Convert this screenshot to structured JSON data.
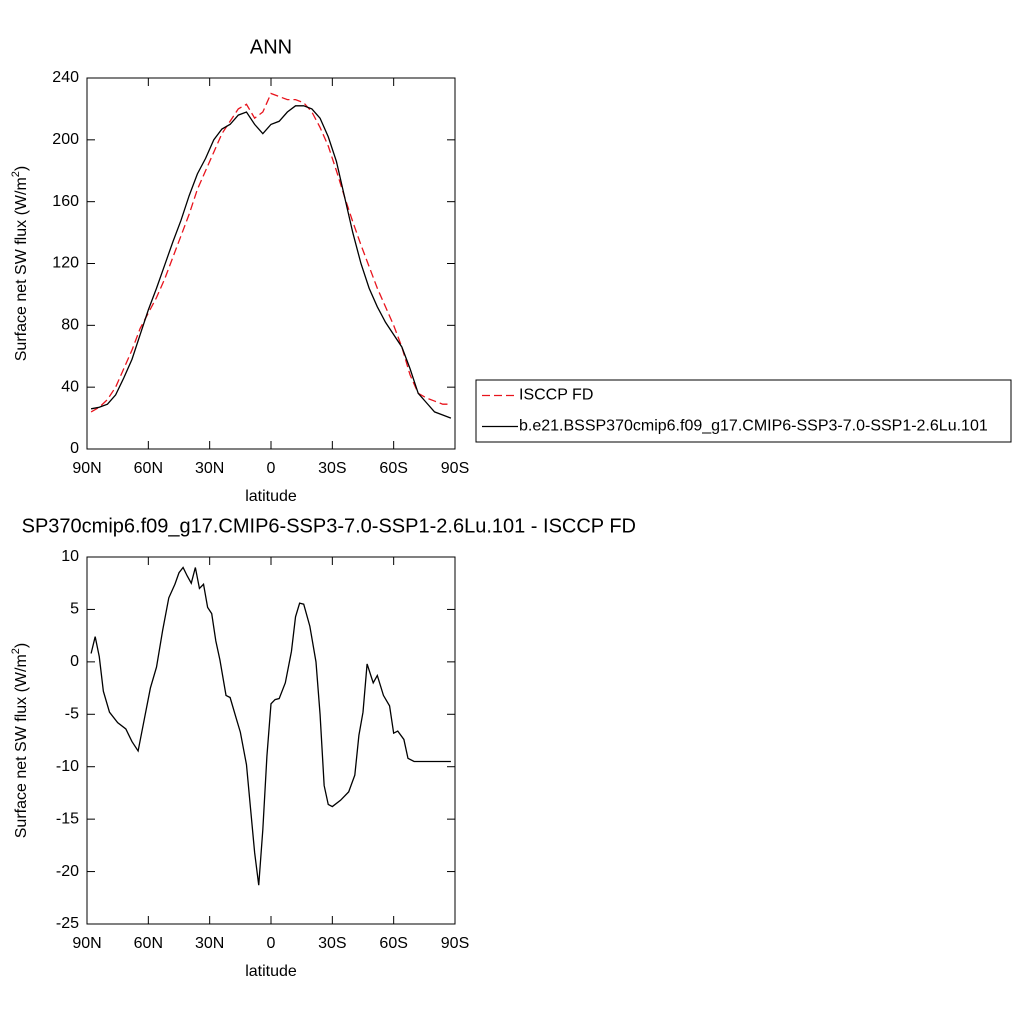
{
  "chart_data": [
    {
      "type": "line",
      "title": "ANN",
      "xlabel": "latitude",
      "ylabel": "Surface net SW flux (W/m",
      "ylabel_sup": "2",
      "ylabel_end": ")",
      "x": [
        88,
        84,
        80,
        76,
        72,
        68,
        64,
        60,
        56,
        52,
        48,
        44,
        40,
        36,
        32,
        28,
        24,
        20,
        16,
        12,
        8,
        4,
        0,
        -4,
        -8,
        -12,
        -16,
        -20,
        -24,
        -28,
        -32,
        -36,
        -40,
        -44,
        -48,
        -52,
        -56,
        -60,
        -64,
        -68,
        -72,
        -76,
        -80,
        -84,
        -88
      ],
      "xlim": [
        90,
        -90
      ],
      "xticks": [
        {
          "value": 90,
          "label": "90N"
        },
        {
          "value": 60,
          "label": "60N"
        },
        {
          "value": 30,
          "label": "30N"
        },
        0,
        {
          "value": -30,
          "label": "30S"
        },
        {
          "value": -60,
          "label": "60S"
        },
        {
          "value": -90,
          "label": "90S"
        }
      ],
      "ylim": [
        0,
        240
      ],
      "yticks": [
        0,
        40,
        80,
        120,
        160,
        200,
        240
      ],
      "legend": "right",
      "series": [
        {
          "name": "ISCCP FD",
          "color": "#e8141d",
          "style": "dashed",
          "values": [
            24,
            27,
            32,
            40,
            52,
            64,
            78,
            88,
            98,
            110,
            124,
            138,
            152,
            168,
            180,
            192,
            204,
            212,
            220,
            223,
            214,
            218,
            230,
            228,
            226,
            226,
            224,
            218,
            208,
            196,
            180,
            163,
            147,
            132,
            118,
            104,
            92,
            80,
            66,
            48,
            36,
            33,
            31,
            29,
            29
          ]
        },
        {
          "name": "b.e21.BSSP370cmip6.f09_g17.CMIP6-SSP3-7.0-SSP1-2.6Lu.101",
          "color": "#000000",
          "style": "solid",
          "values": [
            26,
            27,
            29,
            35,
            46,
            58,
            74,
            90,
            104,
            119,
            134,
            148,
            164,
            178,
            188,
            200,
            207,
            210,
            216,
            218,
            210,
            204,
            210,
            212,
            218,
            222,
            222,
            220,
            214,
            202,
            186,
            163,
            140,
            120,
            104,
            92,
            82,
            74,
            66,
            52,
            36,
            30,
            24,
            22,
            20
          ]
        }
      ]
    },
    {
      "type": "line",
      "title": "SP370cmip6.f09_g17.CMIP6-SSP3-7.0-SSP1-2.6Lu.101 - ISCCP FD",
      "xlabel": "latitude",
      "ylabel": "Surface net SW flux (W/m",
      "ylabel_sup": "2",
      "ylabel_end": ")",
      "x": [
        88,
        86,
        84,
        82,
        79,
        75,
        71,
        68,
        65,
        62,
        59,
        56,
        53,
        50,
        47,
        45,
        43,
        41,
        39,
        37,
        35,
        33,
        31,
        29,
        27,
        25,
        22,
        20,
        17,
        15,
        12,
        10,
        8,
        6,
        4,
        2,
        0,
        -2,
        -4,
        -7,
        -10,
        -12,
        -14,
        -16,
        -19,
        -22,
        -24,
        -26,
        -28,
        -30,
        -34,
        -38,
        -41,
        -43,
        -45,
        -47,
        -50,
        -52,
        -55,
        -58,
        -60,
        -62,
        -65,
        -67,
        -70,
        -72,
        -74,
        -76,
        -78,
        -80,
        -84,
        -86,
        -88
      ],
      "xlim": [
        90,
        -90
      ],
      "xticks": [
        {
          "value": 90,
          "label": "90N"
        },
        {
          "value": 60,
          "label": "60N"
        },
        {
          "value": 30,
          "label": "30N"
        },
        0,
        {
          "value": -30,
          "label": "30S"
        },
        {
          "value": -60,
          "label": "60S"
        },
        {
          "value": -90,
          "label": "90S"
        }
      ],
      "ylim": [
        -25,
        10
      ],
      "yticks": [
        -25,
        -20,
        -15,
        -10,
        -5,
        0,
        5,
        10
      ],
      "series": [
        {
          "color": "#000000",
          "style": "solid",
          "values": [
            0.8,
            2.4,
            0.5,
            -2.8,
            -4.8,
            -5.8,
            -6.4,
            -7.6,
            -8.5,
            -5.5,
            -2.5,
            -0.5,
            3,
            6.1,
            7.4,
            8.5,
            9,
            8.2,
            7.5,
            9,
            7,
            7.4,
            5.2,
            4.6,
            2,
            0.2,
            -3.2,
            -3.4,
            -5.4,
            -6.7,
            -9.8,
            -14,
            -18.2,
            -21.3,
            -16,
            -9,
            -4,
            -3.6,
            -3.5,
            -2,
            1,
            4.3,
            5.6,
            5.5,
            3.4,
            0,
            -5,
            -11.8,
            -13.6,
            -13.8,
            -13.2,
            -12.4,
            -10.8,
            -7,
            -4.8,
            -0.2,
            -2,
            -1.3,
            -3.2,
            -4.2,
            -6.8,
            -6.6,
            -7.4,
            -9.2,
            -9.5,
            -9.5,
            -9.5,
            -9.5,
            -9.5,
            -9.5,
            -9.5,
            -9.5,
            -9.5
          ]
        }
      ]
    }
  ]
}
